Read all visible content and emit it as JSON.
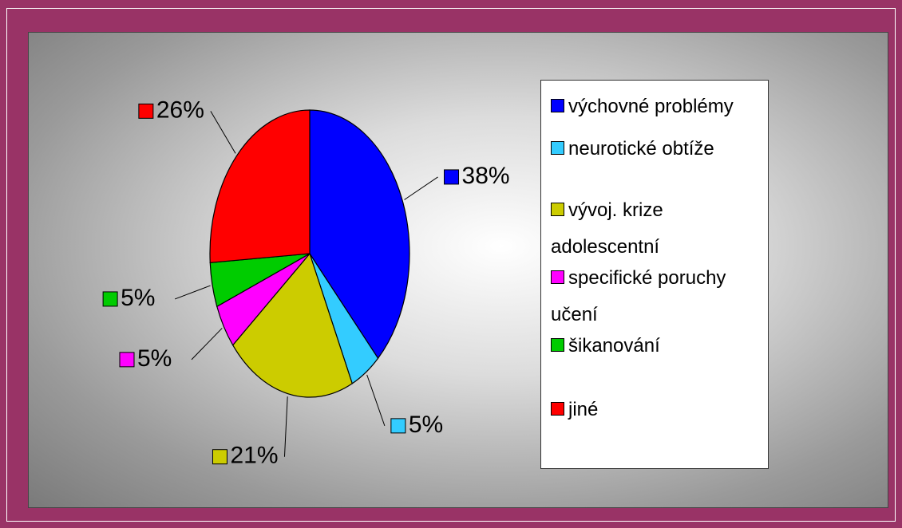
{
  "chart_data": {
    "type": "pie",
    "categories": [
      "výchovné problémy",
      "neurotické obtíže",
      "vývoj. krize adolescentní",
      "specifické poruchy učení",
      "šikanování",
      "jiné"
    ],
    "values": [
      38,
      5,
      21,
      5,
      5,
      26
    ],
    "value_labels": [
      "38%",
      "5%",
      "21%",
      "5%",
      "5%",
      "26%"
    ],
    "colors": [
      "#0000ff",
      "#33ccff",
      "#cccc00",
      "#ff00ff",
      "#00cc00",
      "#ff0000"
    ],
    "legend": "right"
  }
}
